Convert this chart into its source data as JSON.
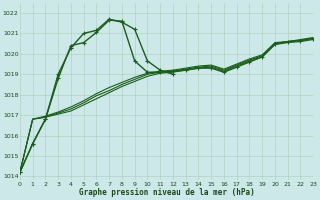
{
  "title": "Graphe pression niveau de la mer (hPa)",
  "background_color": "#cce8e8",
  "grid_color": "#aaccbb",
  "line_color": "#1a5e1a",
  "xlim": [
    0,
    23
  ],
  "ylim": [
    1013.8,
    1022.5
  ],
  "yticks": [
    1014,
    1015,
    1016,
    1017,
    1018,
    1019,
    1020,
    1021,
    1022
  ],
  "xticks": [
    0,
    1,
    2,
    3,
    4,
    5,
    6,
    7,
    8,
    9,
    10,
    11,
    12,
    13,
    14,
    15,
    16,
    17,
    18,
    19,
    20,
    21,
    22,
    23
  ],
  "series": [
    {
      "x": [
        0,
        1,
        2,
        3,
        4,
        5,
        6,
        7,
        8,
        9,
        10,
        11,
        12,
        13,
        14,
        15,
        16,
        17,
        18,
        19,
        20,
        21,
        22,
        23
      ],
      "y": [
        1014.2,
        1015.6,
        1016.8,
        1018.8,
        1020.4,
        1020.55,
        1021.05,
        1021.65,
        1021.6,
        1019.65,
        1019.1,
        1019.1,
        1019.15,
        1019.2,
        1019.3,
        1019.3,
        1019.1,
        1019.35,
        1019.6,
        1019.85,
        1020.5,
        1020.6,
        1020.65,
        1020.75
      ],
      "marker": true,
      "lw": 1.0
    },
    {
      "x": [
        0,
        1,
        2,
        3,
        4,
        5,
        6,
        7,
        8,
        9,
        10,
        11,
        12,
        13,
        14,
        15,
        16,
        17,
        18,
        19,
        20,
        21,
        22,
        23
      ],
      "y": [
        1014.2,
        1015.6,
        1016.8,
        1019.0,
        1020.3,
        1021.0,
        1021.15,
        1021.7,
        1021.55,
        1021.2,
        1019.65,
        1019.2,
        1019.0,
        null,
        null,
        null,
        null,
        null,
        null,
        null,
        null,
        null,
        null,
        null
      ],
      "marker": true,
      "lw": 1.0
    },
    {
      "x": [
        0,
        1,
        2,
        3,
        4,
        5,
        6,
        7,
        8,
        9,
        10,
        11,
        12,
        13,
        14,
        15,
        16,
        17,
        18,
        19,
        20,
        21,
        22,
        23
      ],
      "y": [
        1014.2,
        1016.8,
        1016.9,
        1017.05,
        1017.2,
        1017.5,
        1017.8,
        1018.1,
        1018.4,
        1018.65,
        1018.9,
        1019.05,
        1019.1,
        1019.2,
        1019.3,
        1019.35,
        1019.15,
        1019.4,
        1019.65,
        1019.85,
        1020.45,
        1020.55,
        1020.6,
        1020.7
      ],
      "marker": false,
      "lw": 0.8
    },
    {
      "x": [
        0,
        1,
        2,
        3,
        4,
        5,
        6,
        7,
        8,
        9,
        10,
        11,
        12,
        13,
        14,
        15,
        16,
        17,
        18,
        19,
        20,
        21,
        22,
        23
      ],
      "y": [
        1014.2,
        1016.8,
        1016.9,
        1017.1,
        1017.3,
        1017.6,
        1017.95,
        1018.2,
        1018.5,
        1018.75,
        1019.0,
        1019.1,
        1019.15,
        1019.25,
        1019.35,
        1019.4,
        1019.2,
        1019.45,
        1019.7,
        1019.9,
        1020.5,
        1020.6,
        1020.65,
        1020.75
      ],
      "marker": false,
      "lw": 0.8
    },
    {
      "x": [
        0,
        1,
        2,
        3,
        4,
        5,
        6,
        7,
        8,
        9,
        10,
        11,
        12,
        13,
        14,
        15,
        16,
        17,
        18,
        19,
        20,
        21,
        22,
        23
      ],
      "y": [
        1014.2,
        1016.8,
        1016.95,
        1017.15,
        1017.4,
        1017.7,
        1018.05,
        1018.35,
        1018.6,
        1018.85,
        1019.05,
        1019.15,
        1019.2,
        1019.3,
        1019.4,
        1019.45,
        1019.25,
        1019.5,
        1019.75,
        1019.95,
        1020.55,
        1020.6,
        1020.7,
        1020.8
      ],
      "marker": false,
      "lw": 0.8
    }
  ]
}
